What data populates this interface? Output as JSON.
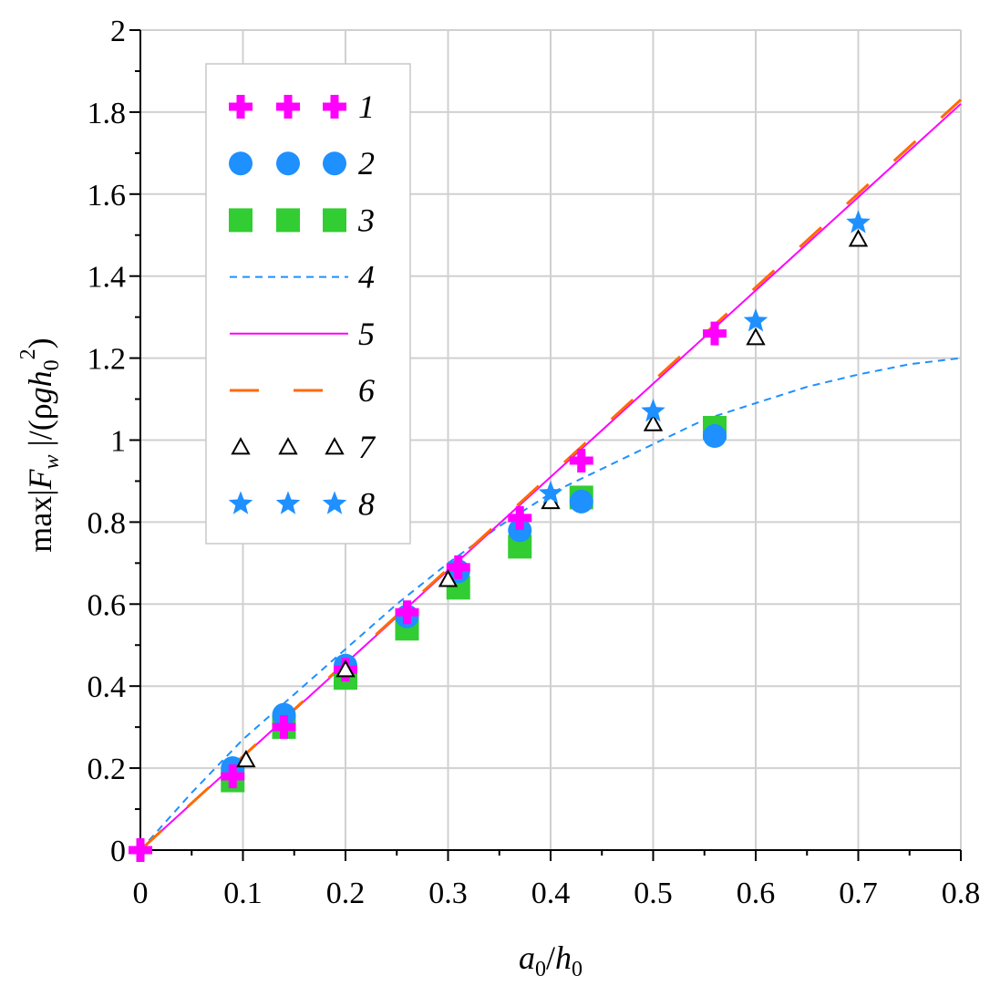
{
  "chart_data": {
    "type": "scatter",
    "title": "",
    "xlabel": {
      "main": "a",
      "sub1": "0",
      "slash": "/",
      "main2": "h",
      "sub2": "0"
    },
    "ylabel": {
      "p1": "max|",
      "F": "F",
      "w": "w",
      "p2": " |/(",
      "rho": "ρ",
      "g": "g",
      "h": "h",
      "sub0": "0",
      "sup2": "2",
      "close": ")"
    },
    "xlim": [
      0,
      0.8
    ],
    "ylim": [
      0,
      2
    ],
    "xticks": [
      0,
      0.1,
      0.2,
      0.3,
      0.4,
      0.5,
      0.6,
      0.7,
      0.8
    ],
    "xtick_labels": [
      "0",
      "0.1",
      "0.2",
      "0.3",
      "0.4",
      "0.5",
      "0.6",
      "0.7",
      "0.8"
    ],
    "yticks": [
      0,
      0.2,
      0.4,
      0.6,
      0.8,
      1,
      1.2,
      1.4,
      1.6,
      1.8,
      2
    ],
    "ytick_labels": [
      "0",
      "0.2",
      "0.4",
      "0.6",
      "0.8",
      "1",
      "1.2",
      "1.4",
      "1.6",
      "1.8",
      "2"
    ],
    "grid": true,
    "legend_position": "top-left",
    "series": [
      {
        "name": "1",
        "kind": "marker",
        "marker": "plus",
        "color": "#ff00ff",
        "x": [
          0,
          0.09,
          0.14,
          0.2,
          0.26,
          0.31,
          0.37,
          0.43,
          0.56
        ],
        "y": [
          0,
          0.18,
          0.3,
          0.44,
          0.58,
          0.69,
          0.81,
          0.95,
          1.26
        ]
      },
      {
        "name": "2",
        "kind": "marker",
        "marker": "circle",
        "color": "#1e90ff",
        "x": [
          0.09,
          0.14,
          0.2,
          0.26,
          0.31,
          0.37,
          0.43,
          0.56
        ],
        "y": [
          0.2,
          0.33,
          0.45,
          0.57,
          0.68,
          0.78,
          0.85,
          1.01
        ]
      },
      {
        "name": "3",
        "kind": "marker",
        "marker": "square",
        "color": "#32cd32",
        "x": [
          0.09,
          0.14,
          0.2,
          0.26,
          0.31,
          0.37,
          0.43,
          0.56
        ],
        "y": [
          0.17,
          0.3,
          0.42,
          0.54,
          0.64,
          0.74,
          0.86,
          1.03
        ]
      },
      {
        "name": "4",
        "kind": "line",
        "dash": "8,6",
        "color": "#1e90ff",
        "width": 2,
        "x": [
          0,
          0.05,
          0.1,
          0.15,
          0.2,
          0.25,
          0.3,
          0.35,
          0.4,
          0.45,
          0.5,
          0.55,
          0.6,
          0.65,
          0.7,
          0.75,
          0.8
        ],
        "y": [
          0,
          0.14,
          0.27,
          0.38,
          0.49,
          0.6,
          0.7,
          0.79,
          0.87,
          0.93,
          0.99,
          1.05,
          1.09,
          1.13,
          1.16,
          1.185,
          1.2
        ]
      },
      {
        "name": "5",
        "kind": "line",
        "dash": "",
        "color": "#ff00ff",
        "width": 2,
        "x": [
          0,
          0.8
        ],
        "y": [
          0,
          1.82
        ]
      },
      {
        "name": "6",
        "kind": "line",
        "dash": "32,38",
        "color": "#ff6a00",
        "width": 3,
        "x": [
          0,
          0.8
        ],
        "y": [
          0,
          1.83
        ]
      },
      {
        "name": "7",
        "kind": "marker",
        "marker": "triangle",
        "color": "#000000",
        "x": [
          0.103,
          0.2,
          0.3,
          0.4,
          0.5,
          0.6,
          0.7
        ],
        "y": [
          0.22,
          0.44,
          0.66,
          0.85,
          1.04,
          1.25,
          1.49
        ]
      },
      {
        "name": "8",
        "kind": "marker",
        "marker": "star",
        "color": "#1e90ff",
        "x": [
          0.4,
          0.5,
          0.6,
          0.7
        ],
        "y": [
          0.87,
          1.07,
          1.29,
          1.53
        ]
      }
    ]
  }
}
